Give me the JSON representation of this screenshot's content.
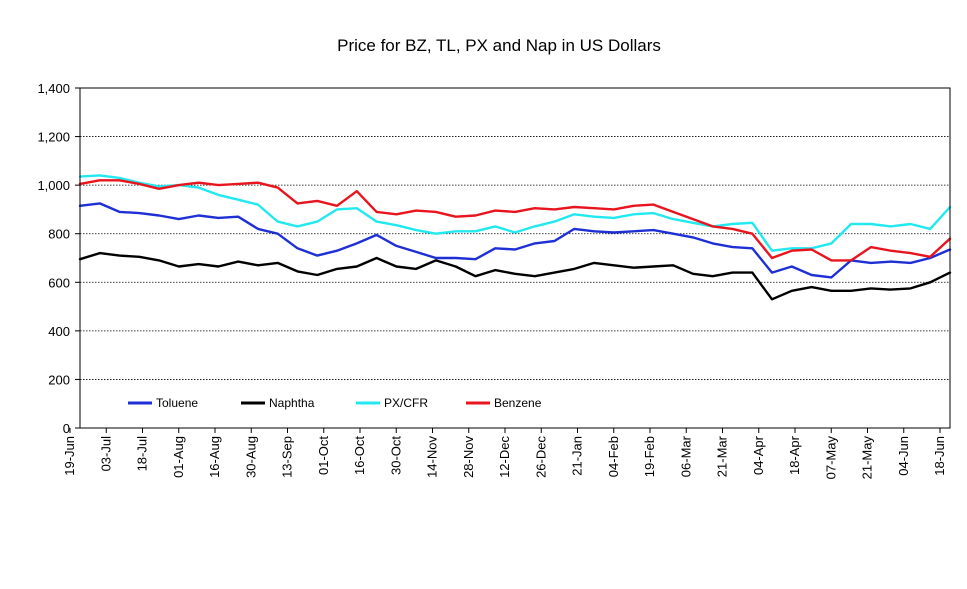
{
  "chart_data": {
    "type": "line",
    "title": "Price for BZ, TL, PX and Nap in US Dollars",
    "ylim": [
      0,
      1400
    ],
    "yticks": [
      0,
      200,
      400,
      600,
      800,
      1000,
      1200,
      1400
    ],
    "ytick_labels": [
      "0",
      "200",
      "400",
      "600",
      "800",
      "1,000",
      "1,200",
      "1,400"
    ],
    "grid": true,
    "legend_position": "bottom-left",
    "x_tick_labels": [
      "19-Jun",
      "03-Jul",
      "18-Jul",
      "01-Aug",
      "16-Aug",
      "30-Aug",
      "13-Sep",
      "01-Oct",
      "16-Oct",
      "30-Oct",
      "14-Nov",
      "28-Nov",
      "12-Dec",
      "26-Dec",
      "21-Jan",
      "04-Feb",
      "19-Feb",
      "06-Mar",
      "21-Mar",
      "04-Apr",
      "18-Apr",
      "07-May",
      "21-May",
      "04-Jun",
      "18-Jun"
    ],
    "series": [
      {
        "name": "Toluene",
        "color": "#1f2fd6",
        "values": [
          915,
          925,
          890,
          885,
          875,
          860,
          875,
          865,
          870,
          820,
          800,
          740,
          710,
          730,
          760,
          795,
          750,
          725,
          700,
          700,
          695,
          740,
          735,
          760,
          770,
          820,
          810,
          805,
          810,
          815,
          800,
          785,
          760,
          745,
          740,
          640,
          665,
          630,
          620,
          690,
          680,
          685,
          680,
          700,
          735
        ]
      },
      {
        "name": "Naphtha",
        "color": "#000000",
        "values": [
          695,
          720,
          710,
          705,
          690,
          665,
          675,
          665,
          685,
          670,
          680,
          645,
          630,
          655,
          665,
          700,
          665,
          655,
          690,
          665,
          625,
          650,
          635,
          625,
          640,
          655,
          680,
          670,
          660,
          665,
          670,
          635,
          625,
          640,
          640,
          530,
          565,
          580,
          565,
          565,
          575,
          570,
          575,
          600,
          640
        ]
      },
      {
        "name": "PX/CFR",
        "color": "#22e8f0",
        "values": [
          1035,
          1040,
          1030,
          1010,
          995,
          1000,
          990,
          960,
          940,
          920,
          850,
          830,
          850,
          900,
          905,
          850,
          835,
          815,
          800,
          810,
          810,
          830,
          805,
          830,
          850,
          880,
          870,
          865,
          880,
          885,
          860,
          845,
          830,
          840,
          845,
          730,
          740,
          740,
          760,
          840,
          840,
          830,
          840,
          820,
          910
        ]
      },
      {
        "name": "Benzene",
        "color": "#e8141e",
        "values": [
          1005,
          1020,
          1020,
          1005,
          985,
          1000,
          1010,
          1000,
          1005,
          1010,
          990,
          925,
          935,
          915,
          975,
          890,
          880,
          895,
          890,
          870,
          875,
          895,
          890,
          905,
          900,
          910,
          905,
          900,
          915,
          920,
          890,
          860,
          830,
          820,
          800,
          700,
          730,
          735,
          690,
          690,
          745,
          730,
          720,
          705,
          780
        ]
      }
    ]
  }
}
